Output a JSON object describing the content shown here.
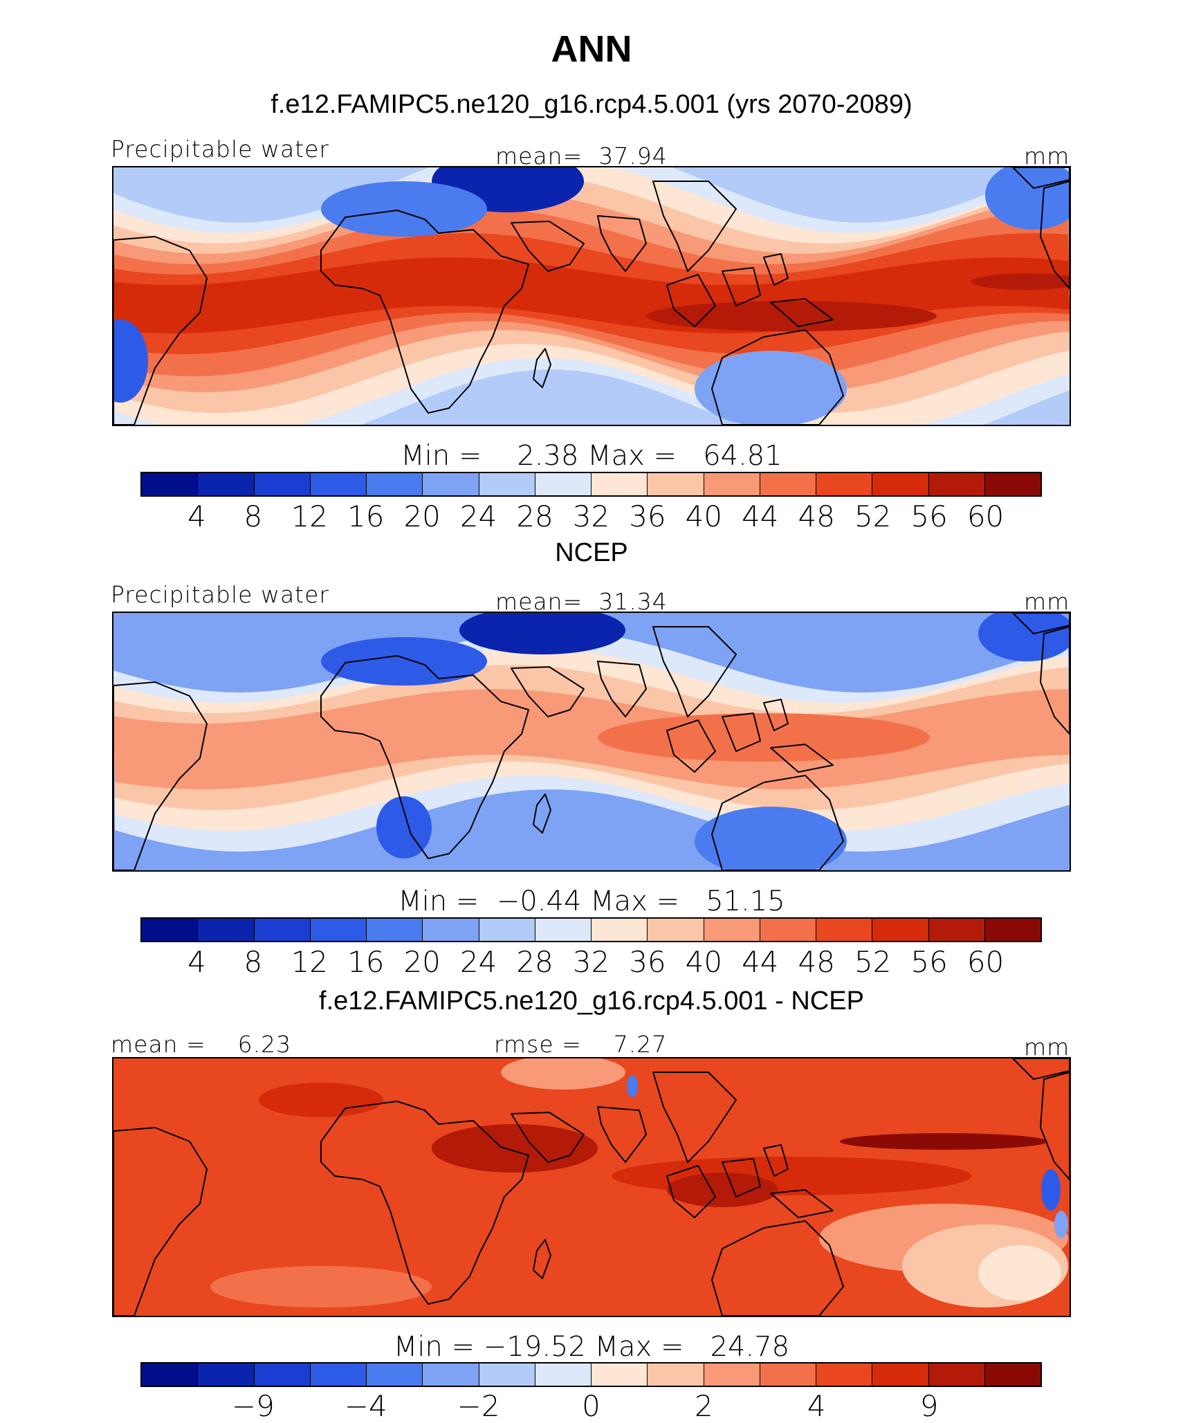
{
  "title": "ANN",
  "panels": [
    {
      "title": "f.e12.FAMIPC5.ne120_g16.rcp4.5.001 (yrs 2070-2089)",
      "left_label": "Precipitable water",
      "center_label": "mean=  37.94",
      "right_label": "mm",
      "minmax": "Min =    2.38 Max =   64.81",
      "kind": "model"
    },
    {
      "title": "NCEP",
      "left_label": "Precipitable water",
      "center_label": "mean=  31.34",
      "right_label": "mm",
      "minmax": "Min =  −0.44 Max =   51.15",
      "kind": "obs"
    },
    {
      "title": "f.e12.FAMIPC5.ne120_g16.rcp4.5.001 - NCEP",
      "left_label": "mean =    6.23",
      "center_label": "rmse =    7.27",
      "right_label": "mm",
      "minmax": "Min = −19.52 Max =   24.78",
      "kind": "diff"
    }
  ],
  "colorbar_abs": {
    "colors": [
      "#000e8c",
      "#0a24ad",
      "#1a3ed1",
      "#2e5ae8",
      "#4a7bef",
      "#7ea2f4",
      "#b3cbf8",
      "#dde9fb",
      "#fde6d4",
      "#fbc6a8",
      "#f89a77",
      "#f2714b",
      "#e8471f",
      "#d62b0a",
      "#b41a08",
      "#8b0a05"
    ],
    "tick_labels": [
      "4",
      "8",
      "12",
      "16",
      "20",
      "24",
      "28",
      "32",
      "36",
      "40",
      "44",
      "48",
      "52",
      "56",
      "60"
    ]
  },
  "colorbar_diff": {
    "colors": [
      "#000e8c",
      "#0a24ad",
      "#1a3ed1",
      "#2e5ae8",
      "#4a7bef",
      "#7ea2f4",
      "#b3cbf8",
      "#dde9fb",
      "#fde6d4",
      "#fbc6a8",
      "#f89a77",
      "#f2714b",
      "#e8471f",
      "#d62b0a",
      "#b41a08",
      "#8b0a05"
    ],
    "tick_labels": [
      "−9",
      "−4",
      "−2",
      "0",
      "2",
      "4",
      "9"
    ]
  }
}
